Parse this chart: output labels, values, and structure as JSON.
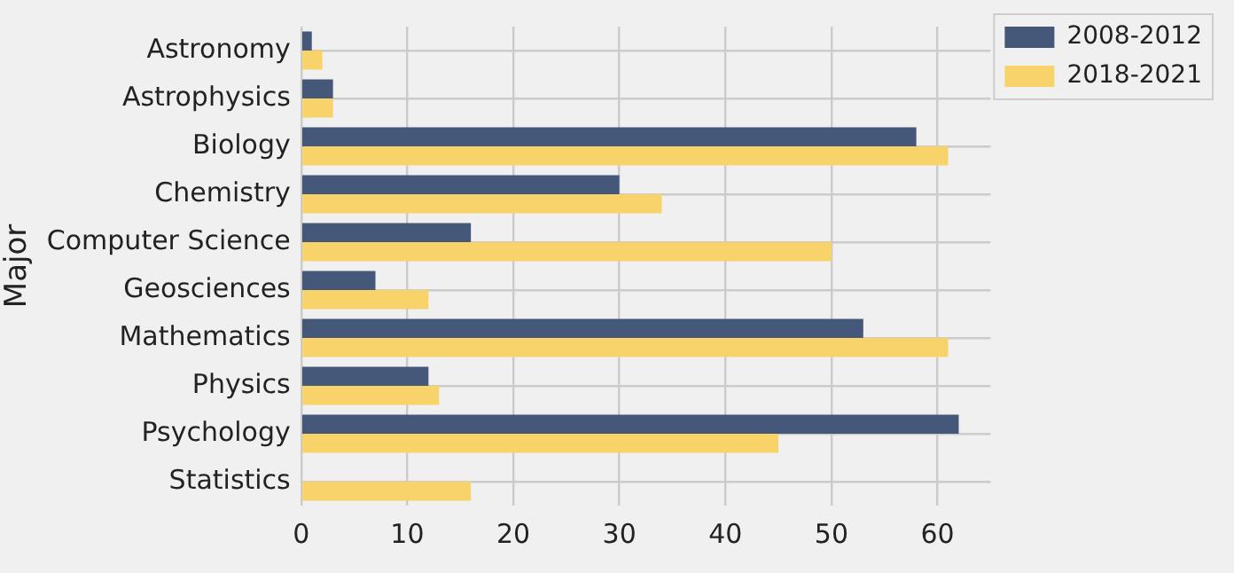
{
  "chart_data": {
    "type": "bar",
    "orientation": "horizontal",
    "ylabel": "Major",
    "categories": [
      "Astronomy",
      "Astrophysics",
      "Biology",
      "Chemistry",
      "Computer Science",
      "Geosciences",
      "Mathematics",
      "Physics",
      "Psychology",
      "Statistics"
    ],
    "series": [
      {
        "name": "2008-2012",
        "color": "#46587a",
        "values": [
          1,
          3,
          58,
          30,
          16,
          7,
          53,
          12,
          62,
          0
        ]
      },
      {
        "name": "2018-2021",
        "color": "#f8d36a",
        "values": [
          2,
          3,
          61,
          34,
          50,
          12,
          61,
          13,
          45,
          16
        ]
      }
    ],
    "xlim": [
      0,
      65
    ],
    "xticks": [
      0,
      10,
      20,
      30,
      40,
      50,
      60
    ],
    "grid": true,
    "legend": "top right"
  }
}
